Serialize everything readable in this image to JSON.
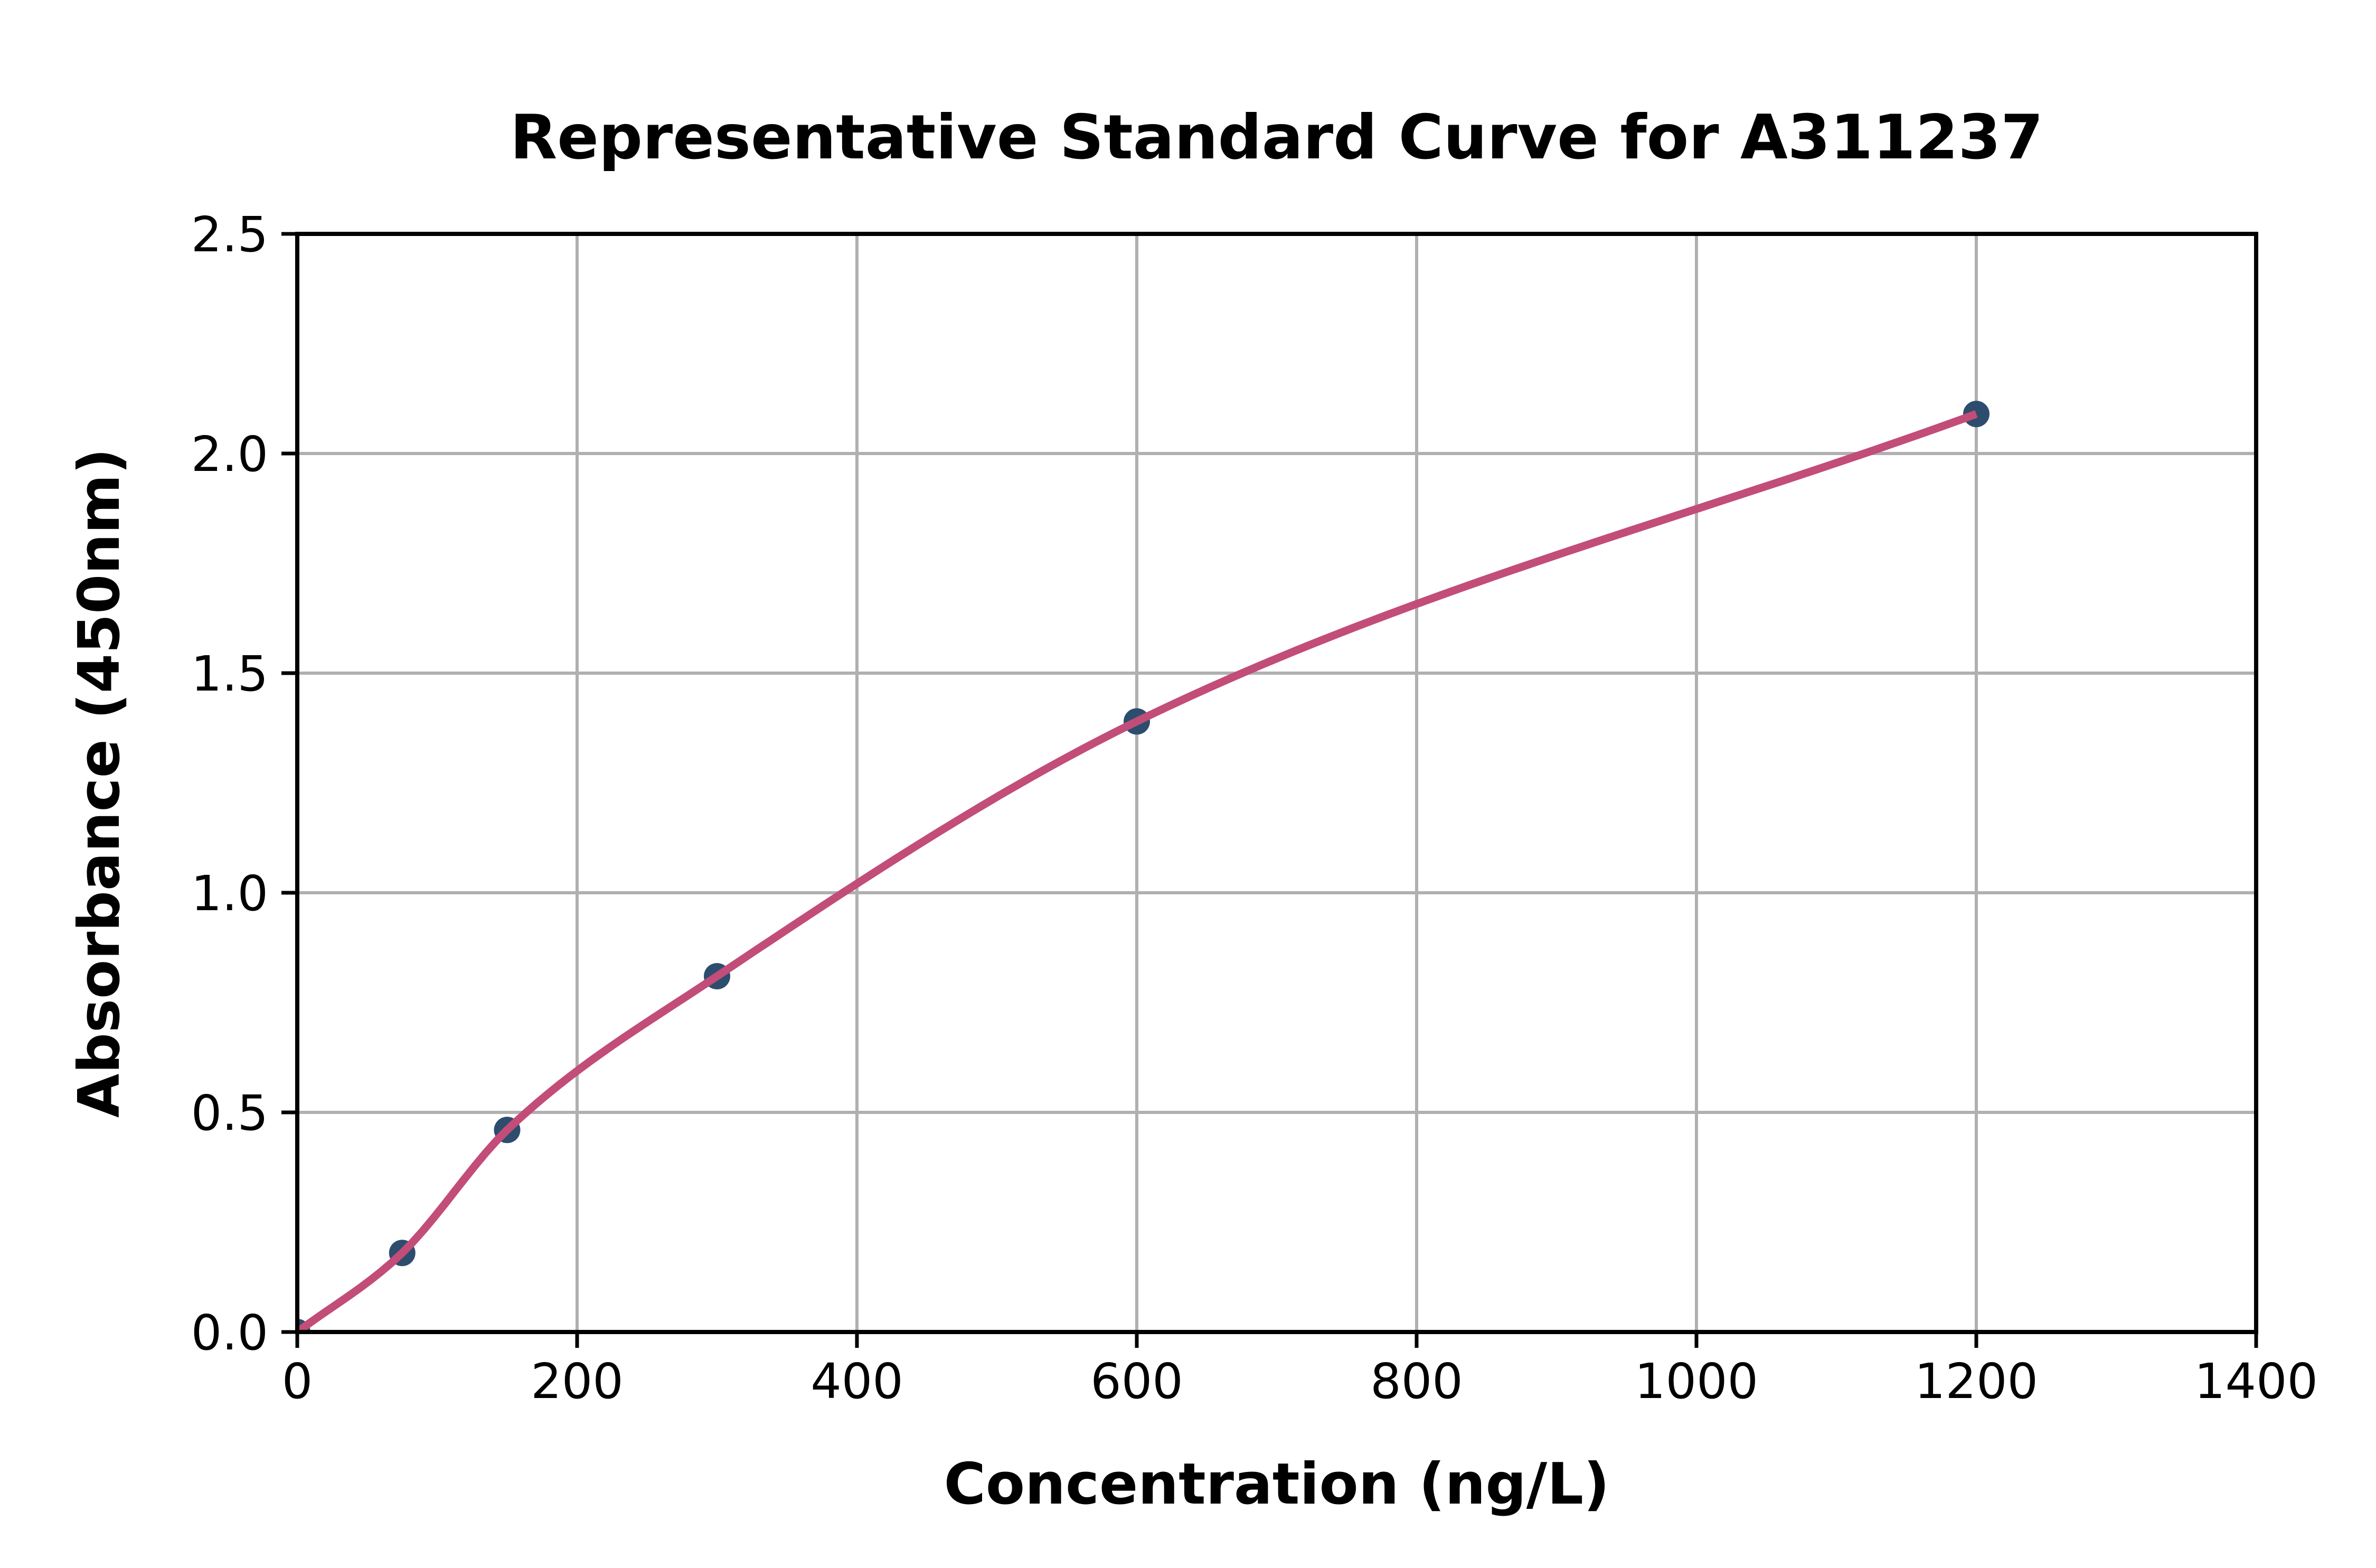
{
  "chart_data": {
    "type": "scatter",
    "title": "Representative Standard Curve for A311237",
    "xlabel": "Concentration (ng/L)",
    "ylabel": "Absorbance (450nm)",
    "xlim": [
      0,
      1400
    ],
    "ylim": [
      0,
      2.5
    ],
    "x_ticks": [
      0,
      200,
      400,
      600,
      800,
      1000,
      1200,
      1400
    ],
    "y_ticks": [
      0.0,
      0.5,
      1.0,
      1.5,
      2.0,
      2.5
    ],
    "y_tick_labels": [
      "0.0",
      "0.5",
      "1.0",
      "1.5",
      "2.0",
      "2.5"
    ],
    "grid": true,
    "legend": "none",
    "points": [
      {
        "x": 0,
        "y": 0.0
      },
      {
        "x": 75,
        "y": 0.18
      },
      {
        "x": 150,
        "y": 0.46
      },
      {
        "x": 300,
        "y": 0.81
      },
      {
        "x": 600,
        "y": 1.39
      },
      {
        "x": 1200,
        "y": 2.09
      }
    ],
    "fit_line": {
      "x_start": 0,
      "x_end": 1200
    },
    "colors": {
      "marker": "#2d4d6e",
      "line": "#c24d78",
      "grid": "#b0b0b0",
      "axis": "#000000",
      "text": "#000000",
      "background": "#ffffff"
    }
  }
}
